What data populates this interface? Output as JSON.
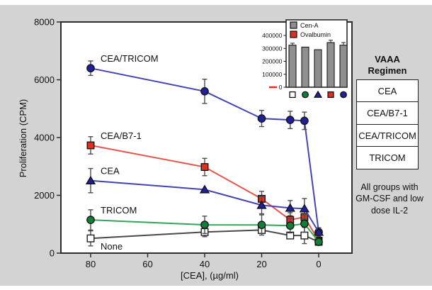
{
  "figure": {
    "background_color": "#d3d3d3",
    "axis_color": "#2e2e2e"
  },
  "side_panel": {
    "title": "VAAA Regimen",
    "rows": [
      "CEA",
      "CEA/B7-1",
      "CEA/TRICOM",
      "TRICOM"
    ],
    "note": "All groups with GM-CSF and low dose IL-2"
  },
  "chart_data": [
    {
      "type": "line",
      "title": "",
      "xlabel": "[CEA], (µg/ml)",
      "ylabel": "Proliferation (CPM)",
      "x_ticks": [
        80,
        60,
        40,
        20,
        0
      ],
      "x_axis_reversed": true,
      "y_ticks": [
        0,
        2000,
        4000,
        6000,
        8000
      ],
      "ylim": [
        0,
        8000
      ],
      "grid": false,
      "x": [
        80,
        40,
        20,
        10,
        5,
        0
      ],
      "series": [
        {
          "name": "CEA/TRICOM",
          "marker": "circle",
          "color": "#4444b6",
          "fill": "#20209a",
          "values": [
            6400,
            5600,
            4660,
            4610,
            4580,
            730
          ],
          "errors": [
            250,
            420,
            280,
            300,
            300,
            150
          ],
          "label_side": "above"
        },
        {
          "name": "CEA/B7-1",
          "marker": "square",
          "color": "#e8554a",
          "fill": "#de2f20",
          "values": [
            3730,
            2980,
            1880,
            1150,
            1250,
            430
          ],
          "errors": [
            300,
            300,
            260,
            250,
            280,
            0
          ],
          "label_side": "above"
        },
        {
          "name": "CEA",
          "marker": "triangle",
          "color": "#4444b6",
          "fill": "#20209a",
          "values": [
            2510,
            2200,
            1660,
            1560,
            1540,
            730
          ],
          "errors": [
            420,
            0,
            300,
            260,
            350,
            120
          ],
          "label_side": "above"
        },
        {
          "name": "None",
          "marker": "square",
          "color": "#4a4a4a",
          "fill": "#ffffff",
          "values": [
            510,
            730,
            800,
            610,
            610,
            390
          ],
          "errors": [
            260,
            160,
            0,
            0,
            280,
            0
          ],
          "label_side": "below"
        },
        {
          "name": "TRICOM",
          "marker": "circle",
          "color": "#35a656",
          "fill": "#0e7f35",
          "values": [
            1150,
            980,
            975,
            950,
            1020,
            390
          ],
          "errors": [
            350,
            300,
            350,
            250,
            300,
            0
          ],
          "label_side": "above"
        }
      ]
    },
    {
      "type": "bar",
      "role": "inset",
      "y_ticks": [
        0,
        100000,
        200000,
        300000,
        400000
      ],
      "ylim": [
        0,
        450000
      ],
      "categories": [
        "None",
        "TRICOM",
        "CEA",
        "CEA/B7-1",
        "CEA/TRICOM"
      ],
      "legend": [
        {
          "label": "Cen-A",
          "color": "#8f8f8f"
        },
        {
          "label": "Ovalbumin",
          "color": "#de2f20"
        }
      ],
      "series": [
        {
          "name": "Cen-A",
          "color": "#8f8f8f",
          "values": [
            325000,
            310000,
            290000,
            345000,
            325000
          ],
          "errors": [
            15000,
            0,
            0,
            18000,
            20000
          ]
        },
        {
          "name": "Ovalbumin",
          "color": "#de2f20",
          "values": [
            0,
            0,
            0,
            0,
            0
          ]
        }
      ],
      "category_markers": [
        {
          "marker": "square",
          "fill": "#ffffff"
        },
        {
          "marker": "circle",
          "fill": "#0e7f35"
        },
        {
          "marker": "triangle",
          "fill": "#20209a"
        },
        {
          "marker": "square",
          "fill": "#de2f20"
        },
        {
          "marker": "circle",
          "fill": "#20209a"
        }
      ]
    }
  ]
}
